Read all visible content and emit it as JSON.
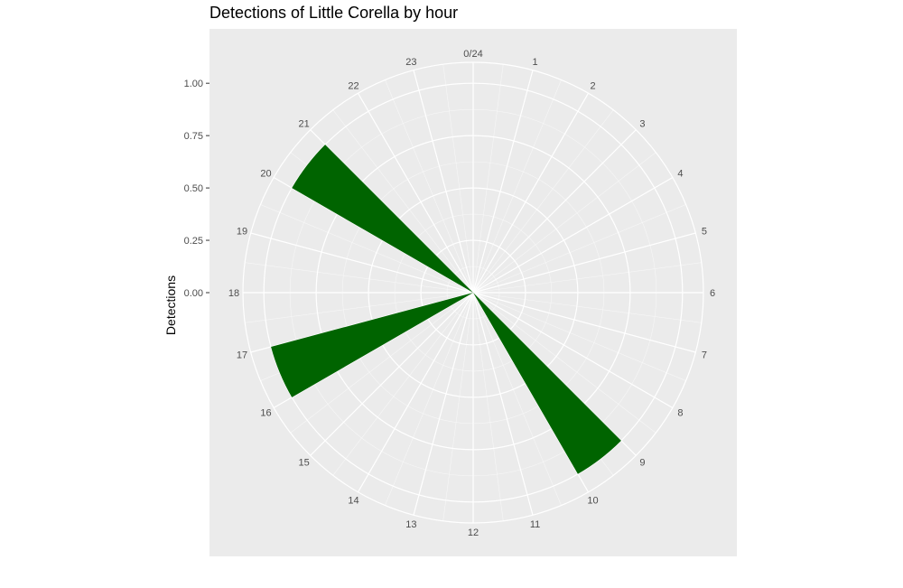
{
  "chart_data": {
    "type": "bar",
    "coord": "polar",
    "title": "Detections of Little Corella by hour",
    "ylabel": "Detections",
    "xlabel": "",
    "categories": [
      "0/24",
      "1",
      "2",
      "3",
      "4",
      "5",
      "6",
      "7",
      "8",
      "9",
      "10",
      "11",
      "12",
      "13",
      "14",
      "15",
      "16",
      "17",
      "18",
      "19",
      "20",
      "21",
      "22",
      "23"
    ],
    "values": [
      0,
      0,
      0,
      0,
      0,
      0,
      0,
      0,
      0,
      1,
      0,
      0,
      0,
      0,
      0,
      0,
      1,
      0,
      0,
      0,
      1,
      0,
      0,
      0
    ],
    "bar_span_hours": [
      [
        9,
        10
      ],
      [
        16,
        17
      ],
      [
        20,
        21
      ]
    ],
    "yticks": [
      "0.00",
      "0.25",
      "0.50",
      "0.75",
      "1.00"
    ],
    "ylim": [
      0,
      1.1
    ],
    "bar_color": "#006400",
    "panel_background": "#ebebeb",
    "grid": true
  }
}
